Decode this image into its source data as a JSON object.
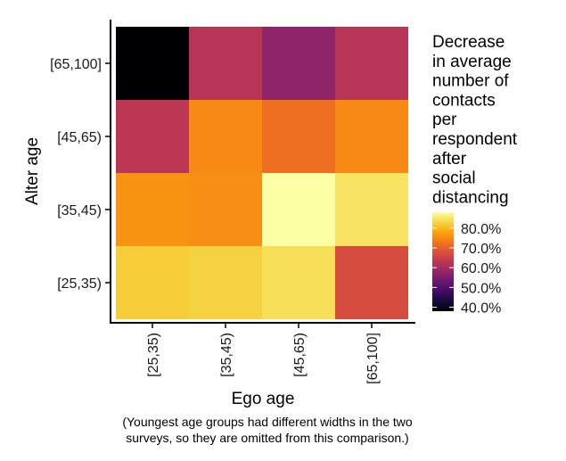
{
  "chart_data": {
    "type": "heatmap",
    "xlabel": "Ego age",
    "ylabel": "Alter age",
    "x_categories": [
      "[25,35)",
      "[35,45)",
      "[45,65)",
      "[65,100]"
    ],
    "y_categories": [
      "[25,35)",
      "[35,45)",
      "[45,65)",
      "[65,100]"
    ],
    "values": [
      [
        82.0,
        82.5,
        84.0,
        67.0
      ],
      [
        76.0,
        75.5,
        88.0,
        84.5
      ],
      [
        63.0,
        75.0,
        72.0,
        75.0
      ],
      [
        38.0,
        62.5,
        57.5,
        62.5
      ]
    ],
    "value_unit": "%",
    "legend_title_lines": [
      "Decrease",
      "in average",
      "number of",
      "contacts",
      "per",
      "respondent",
      "after",
      "social",
      "distancing"
    ],
    "legend_ticks": [
      40,
      50,
      60,
      70,
      80
    ],
    "legend_tick_labels": [
      "40.0%",
      "50.0%",
      "60.0%",
      "70.0%",
      "80.0%"
    ],
    "color_range": [
      38,
      88
    ],
    "colormap": "inferno",
    "legend_position": "right",
    "grid": false
  },
  "caption_lines": [
    "(Youngest age groups had different widths in the two",
    "surveys, so they are omitted from this comparison.)"
  ]
}
